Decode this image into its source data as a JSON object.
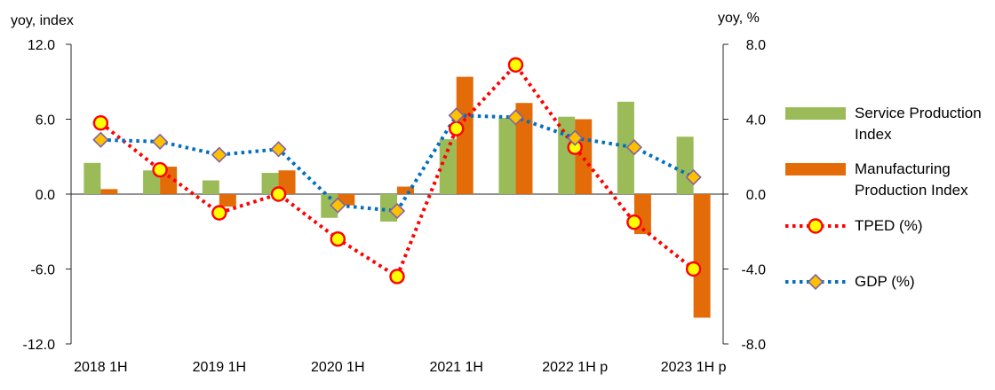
{
  "chart_data": {
    "type": "bar",
    "categories": [
      "2018 1H",
      "",
      "2019 1H",
      "",
      "2020 1H",
      "",
      "2021 1H",
      "",
      "2022 1H p",
      "",
      "2023 1H p"
    ],
    "series": [
      {
        "name": "Service Production Index",
        "type": "bar",
        "axis": "left",
        "color": "#9BBB59",
        "values": [
          2.5,
          1.9,
          1.1,
          1.7,
          -1.9,
          -2.2,
          4.4,
          6.1,
          6.2,
          7.4,
          4.6
        ]
      },
      {
        "name": "Manufacturing Production Index",
        "type": "bar",
        "axis": "left",
        "color": "#E36C09",
        "values": [
          0.4,
          2.2,
          -1.0,
          1.9,
          -0.9,
          0.6,
          9.4,
          7.3,
          6.0,
          -3.2,
          -9.9
        ]
      },
      {
        "name": "TPED (%)",
        "type": "line",
        "axis": "right",
        "color": "#FF0000",
        "marker": "circle",
        "marker_fill": "#FFFF00",
        "marker_stroke": "#FF0000",
        "values": [
          3.8,
          1.3,
          -1.0,
          0.0,
          -2.4,
          -4.4,
          3.5,
          6.9,
          2.5,
          -1.5,
          -4.0
        ]
      },
      {
        "name": "GDP (%)",
        "type": "line",
        "axis": "right",
        "color": "#0070C0",
        "marker": "diamond",
        "marker_fill": "#FFC000",
        "marker_stroke": "#8064A2",
        "values": [
          2.9,
          2.8,
          2.1,
          2.4,
          -0.6,
          -0.9,
          4.2,
          4.1,
          3.0,
          2.5,
          0.9
        ]
      }
    ],
    "ylabel_left": "yoy, index",
    "ylabel_right": "yoy, %",
    "ylim_left": [
      -12,
      12
    ],
    "ylim_right": [
      -8,
      8
    ],
    "yticks_left": [
      "12.0",
      "6.0",
      "0.0",
      "-6.0",
      "-12.0"
    ],
    "yticks_right": [
      "8.0",
      "4.0",
      "0.0",
      "-4.0",
      "-8.0"
    ],
    "grid": false,
    "legend_position": "right"
  }
}
